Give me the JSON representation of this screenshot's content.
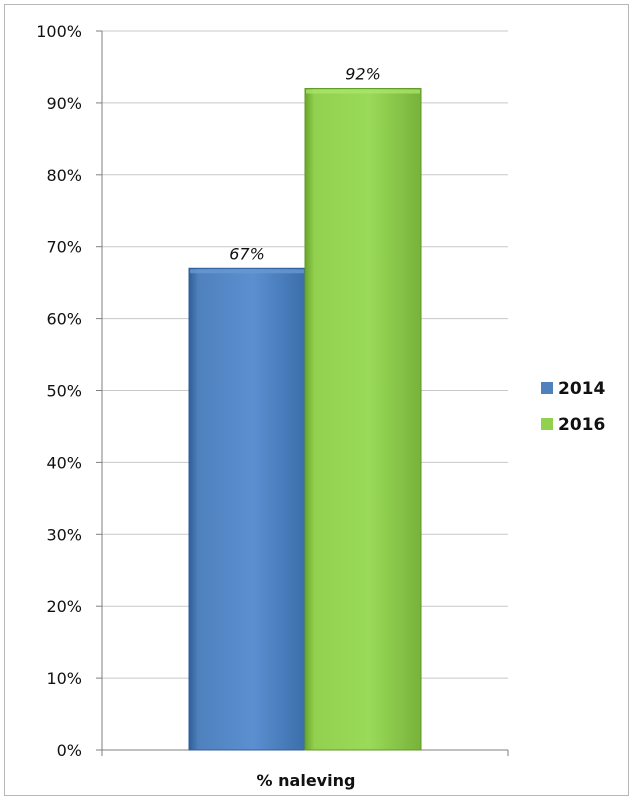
{
  "chart_data": {
    "type": "bar",
    "categories": [
      "% naleving"
    ],
    "series": [
      {
        "name": "2014",
        "values": [
          67
        ],
        "color": "#4F81BD",
        "label": "67%"
      },
      {
        "name": "2016",
        "values": [
          92
        ],
        "color": "#92D050",
        "label": "92%"
      }
    ],
    "ylim": [
      0,
      100
    ],
    "yticks": [
      0,
      10,
      20,
      30,
      40,
      50,
      60,
      70,
      80,
      90,
      100
    ],
    "ytick_labels": [
      "0%",
      "10%",
      "20%",
      "30%",
      "40%",
      "50%",
      "60%",
      "70%",
      "80%",
      "90%",
      "100%"
    ],
    "grid": true,
    "legend_position": "right",
    "title": "",
    "xlabel": "",
    "ylabel": ""
  }
}
